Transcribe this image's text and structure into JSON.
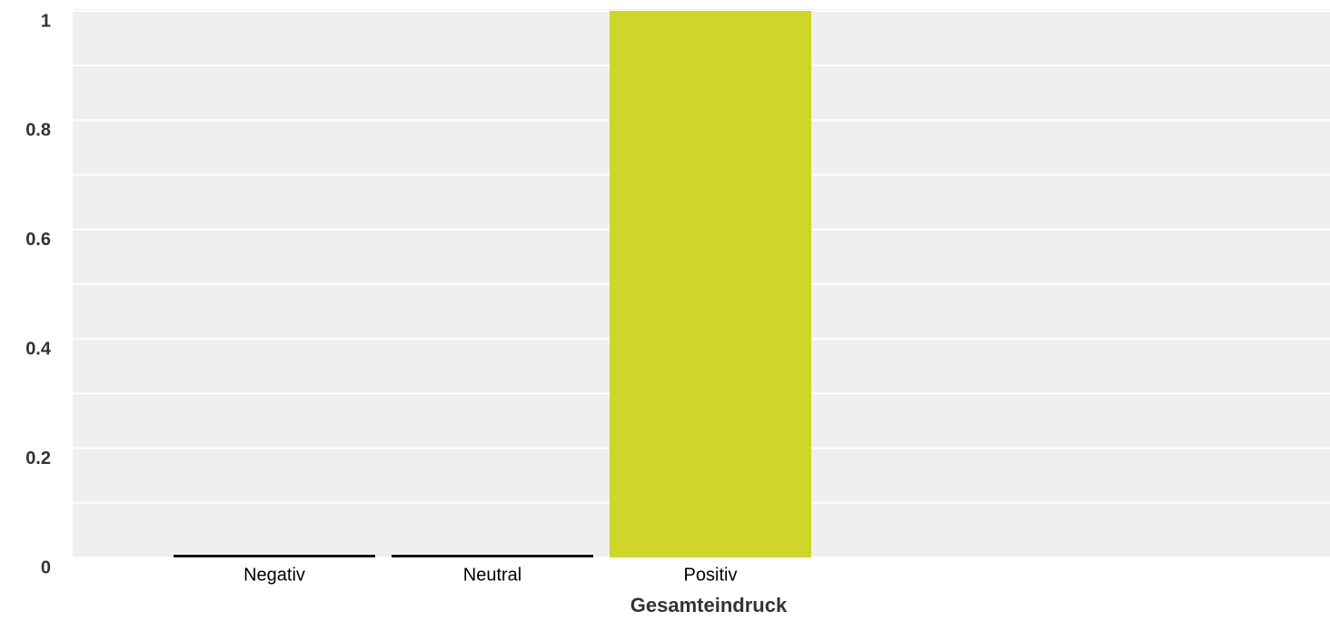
{
  "chart_data": {
    "type": "bar",
    "x_label": "Gesamteindruck",
    "categories": [
      "Negativ",
      "Neutral",
      "Positiv"
    ],
    "values": [
      0,
      0,
      1
    ],
    "colors": [
      "#111111",
      "#111111",
      "#cfd62a"
    ],
    "ylim": [
      0,
      1
    ],
    "yticks": [
      0,
      0.2,
      0.4,
      0.6,
      0.8,
      1
    ],
    "minor_yticks": [
      0.1,
      0.3,
      0.5,
      0.7,
      0.9
    ],
    "grid": true
  }
}
